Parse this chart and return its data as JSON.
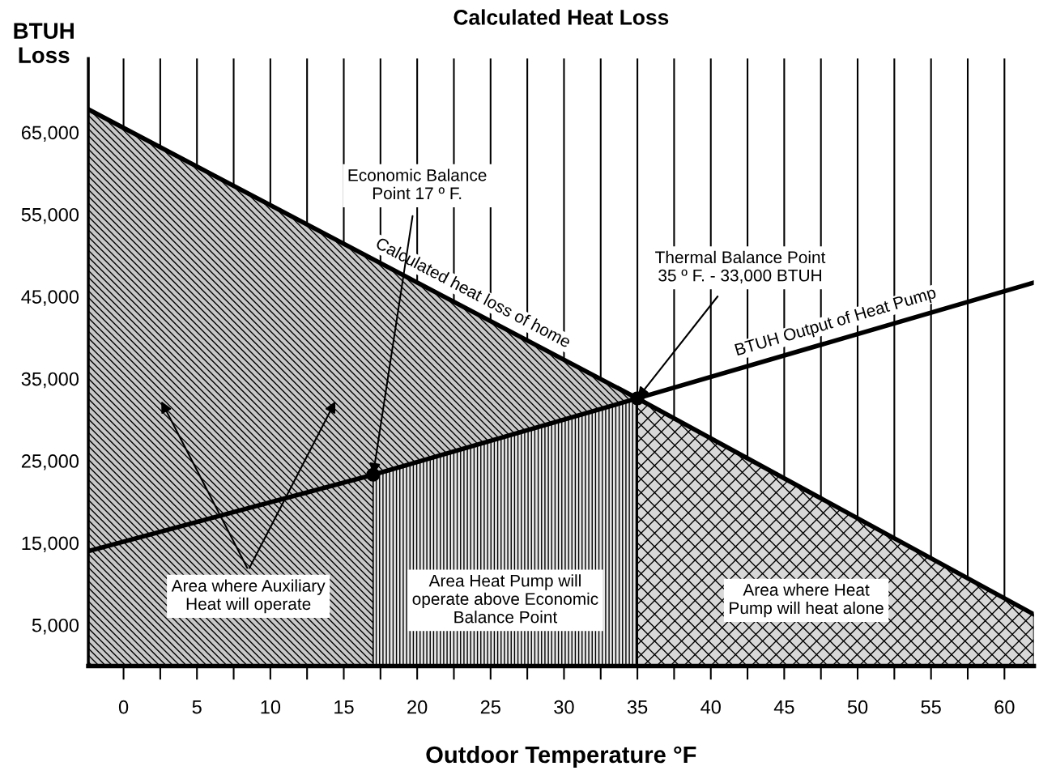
{
  "chart_data": {
    "type": "line",
    "title": "Calculated Heat Loss",
    "xlabel": "Outdoor Temperature °F",
    "ylabel": "BTUH\nLoss",
    "xlim": [
      -2.4,
      62
    ],
    "ylim": [
      0,
      74000
    ],
    "xticks": [
      0,
      {
        "value": 2.5,
        "label": null
      },
      5,
      {
        "value": 7.5,
        "label": null
      },
      10,
      {
        "value": 12.5,
        "label": null
      },
      15,
      {
        "value": 17.5,
        "label": null
      },
      20,
      {
        "value": 22.5,
        "label": null
      },
      25,
      {
        "value": 27.5,
        "label": null
      },
      30,
      {
        "value": 32.5,
        "label": null
      },
      35,
      {
        "value": 37.5,
        "label": null
      },
      40,
      {
        "value": 42.5,
        "label": null
      },
      45,
      {
        "value": 47.5,
        "label": null
      },
      50,
      {
        "value": 52.5,
        "label": null
      },
      55,
      {
        "value": 57.5,
        "label": null
      },
      60
    ],
    "yticks": [
      {
        "value": 5000,
        "label": "5,000"
      },
      {
        "value": 15000,
        "label": "15,000"
      },
      {
        "value": 25000,
        "label": "25,000"
      },
      {
        "value": 35000,
        "label": "35,000"
      },
      {
        "value": 45000,
        "label": "45,000"
      },
      {
        "value": 55000,
        "label": "55,000"
      },
      {
        "value": 65000,
        "label": "65,000"
      }
    ],
    "grid": "x",
    "legend": false,
    "series": [
      {
        "type": "area",
        "color": "#c8c8c8",
        "x": [
          -2.4,
          17,
          35
        ],
        "values": [
          67800,
          49500,
          32600
        ]
      },
      {
        "type": "area",
        "color": "#e6e6e6",
        "x": [
          17,
          35
        ],
        "values": [
          23300,
          32600
        ]
      },
      {
        "type": "area",
        "color": "#d8d8d8",
        "x": [
          35,
          62
        ],
        "values": [
          32600,
          6300
        ]
      },
      {
        "name": "Calculated heat loss of home",
        "color": "#000000",
        "x": [
          -2.4,
          35,
          62
        ],
        "values": [
          67800,
          32600,
          6300
        ]
      },
      {
        "name": "BTUH Output of Heat Pump",
        "color": "#000000",
        "x": [
          -2.4,
          17,
          35,
          62
        ],
        "values": [
          14000,
          23300,
          32600,
          46700
        ]
      },
      {
        "type": "scatter",
        "color": "#000000",
        "marker": "circle",
        "x": [
          17,
          35
        ],
        "values": [
          23300,
          32600
        ]
      }
    ],
    "annotations": [
      {
        "text": "Economic Balance\nPoint 17 º F.",
        "x": 17,
        "y": 23300
      },
      {
        "text": "Thermal Balance Point\n35 º F. - 33,000 BTUH",
        "x": 35,
        "y": 32600
      },
      "Area where Auxiliary\nHeat will operate",
      "Area Heat Pump will\noperate above Economic\nBalance Point",
      "Area where Heat\nPump will heat alone"
    ]
  }
}
